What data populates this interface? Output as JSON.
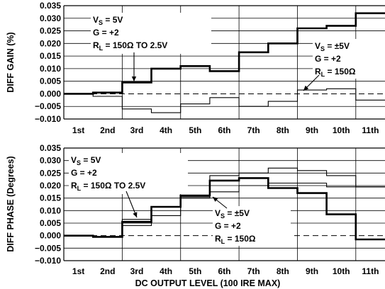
{
  "chart_data": [
    {
      "type": "line",
      "step": true,
      "categories": [
        "1st",
        "2nd",
        "3rd",
        "4th",
        "5th",
        "6th",
        "7th",
        "8th",
        "9th",
        "10th",
        "11th"
      ],
      "ylabel": "DIFF GAIN (%)",
      "xlabel": "",
      "ylim": [
        -0.01,
        0.035
      ],
      "yticks": [
        "0.035",
        "0.030",
        "0.025",
        "0.020",
        "0.015",
        "0.010",
        "0.005",
        "0.000",
        "−0.005",
        "−0.010"
      ],
      "grid": true,
      "zero_line": "dashed",
      "series": [
        {
          "values": [
            0.0,
            0.0005,
            0.0045,
            0.01,
            0.011,
            0.009,
            0.0165,
            0.02,
            0.026,
            0.027,
            0.032
          ],
          "style": "thick"
        },
        {
          "values": [
            0.0,
            -0.001,
            -0.006,
            -0.0075,
            -0.004,
            -0.0015,
            -0.005,
            -0.003,
            0.0015,
            0.002,
            -0.0025
          ],
          "style": "thin"
        }
      ],
      "annotations": [
        {
          "id": "vs5",
          "lines": [
            [
              "V",
              "S",
              " = 5V"
            ],
            [
              "G = +2"
            ],
            [
              "R",
              "L",
              " = 150Ω  TO 2.5V"
            ]
          ]
        },
        {
          "id": "vspm5",
          "lines": [
            [
              "V",
              "S",
              " = ±5V"
            ],
            [
              "G = +2"
            ],
            [
              "R",
              "L",
              " = 150Ω"
            ]
          ]
        }
      ]
    },
    {
      "type": "line",
      "step": true,
      "categories": [
        "1st",
        "2nd",
        "3rd",
        "4th",
        "5th",
        "6th",
        "7th",
        "8th",
        "9th",
        "10th",
        "11th"
      ],
      "ylabel": "DIFF PHASE (Degrees)",
      "xlabel": "DC  OUTPUT LEVEL (100 IRE MAX)",
      "ylim": [
        -0.01,
        0.035
      ],
      "yticks": [
        "0.035",
        "0.030",
        "0.025",
        "0.020",
        "0.015",
        "0.010",
        "0.005",
        "0.000",
        "−0.005",
        "−0.010"
      ],
      "grid": true,
      "zero_line": "dashed",
      "series": [
        {
          "values": [
            0.0,
            -0.0005,
            0.0055,
            0.0115,
            0.016,
            0.022,
            0.023,
            0.019,
            0.017,
            0.0085,
            -0.0015
          ],
          "style": "thick"
        },
        {
          "values": [
            0.0,
            -0.0005,
            0.0065,
            0.0115,
            0.015,
            0.024,
            0.025,
            0.027,
            0.026,
            0.024,
            0.0195
          ],
          "style": "thin"
        },
        {
          "values": [
            0.0,
            -0.0005,
            0.004,
            0.008,
            0.0155,
            0.0175,
            0.02,
            0.021,
            0.021,
            0.0195,
            0.0195
          ],
          "style": "thin"
        }
      ],
      "annotations": [
        {
          "id": "vs5",
          "lines": [
            [
              "V",
              "S",
              " = 5V"
            ],
            [
              "G = +2"
            ],
            [
              "R",
              "L",
              " = 150Ω  TO 2.5V"
            ]
          ]
        },
        {
          "id": "vspm5",
          "lines": [
            [
              "V",
              "S",
              " = ±5V"
            ],
            [
              "G = +2"
            ],
            [
              "R",
              "L",
              " = 150Ω"
            ]
          ]
        }
      ]
    }
  ]
}
